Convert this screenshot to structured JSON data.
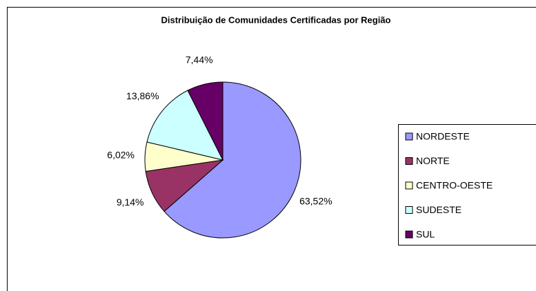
{
  "chart_data": {
    "type": "pie",
    "title": "Distribuição de Comunidades Certificadas por Região",
    "categories": [
      "NORDESTE",
      "NORTE",
      "CENTRO-OESTE",
      "SUDESTE",
      "SUL"
    ],
    "values": [
      63.52,
      9.14,
      6.02,
      13.86,
      7.44
    ],
    "value_labels": [
      "63,52%",
      "9,14%",
      "6,02%",
      "13,86%",
      "7,44%"
    ],
    "colors": [
      "#9999ff",
      "#993366",
      "#ffffcc",
      "#ccffff",
      "#660066"
    ],
    "legend": "right"
  }
}
